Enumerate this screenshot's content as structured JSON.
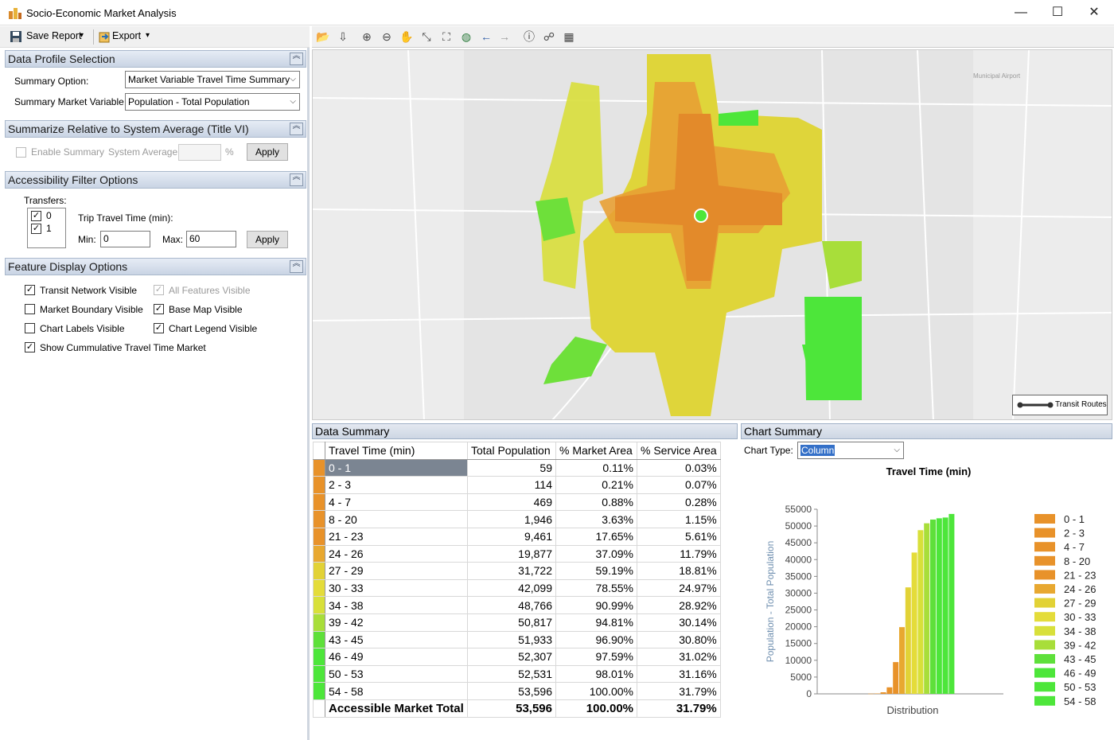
{
  "window": {
    "title": "Socio-Economic Market Analysis",
    "minimize": "—",
    "maximize": "☐",
    "close": "✕"
  },
  "toolbar": {
    "save_report": "Save Report",
    "export": "Export",
    "dropdown_glyph": "▾"
  },
  "sections": {
    "data_profile": "Data Profile Selection",
    "summarize": "Summarize Relative to System Average (Title VI)",
    "accessibility": "Accessibility Filter Options",
    "feature_display": "Feature Display Options"
  },
  "data_profile": {
    "summary_option_label": "Summary Option:",
    "summary_option_value": "Market Variable Travel Time Summary",
    "market_variable_label": "Summary Market Variable:",
    "market_variable_value": "Population - Total Population"
  },
  "summarize": {
    "enable_label": "Enable Summary",
    "system_average_label": "System Average:",
    "percent_symbol": "%",
    "apply_label": "Apply"
  },
  "accessibility": {
    "transfers_label": "Transfers:",
    "transfer_options": [
      "0",
      "1"
    ],
    "trip_time_label": "Trip Travel Time (min):",
    "min_label": "Min:",
    "min_value": "0",
    "max_label": "Max:",
    "max_value": "60",
    "apply_label": "Apply"
  },
  "feature_display": {
    "transit_network": "Transit Network Visible",
    "all_features": "All Features Visible",
    "market_boundary": "Market Boundary Visible",
    "base_map": "Base Map Visible",
    "chart_labels": "Chart Labels Visible",
    "chart_legend": "Chart Legend Visible",
    "cumulative": "Show Cummulative Travel Time Market"
  },
  "map": {
    "legend_label": "Transit Routes",
    "airport_label": "Municipal Airport"
  },
  "data_summary": {
    "title": "Data Summary",
    "columns": [
      "Travel Time (min)",
      "Total Population",
      "% Market Area",
      "% Service Area"
    ],
    "rows": [
      {
        "range": "0 - 1",
        "pop": "59",
        "market": "0.11%",
        "service": "0.03%",
        "color": "#e8922a"
      },
      {
        "range": "2 - 3",
        "pop": "114",
        "market": "0.21%",
        "service": "0.07%",
        "color": "#e8922a"
      },
      {
        "range": "4 - 7",
        "pop": "469",
        "market": "0.88%",
        "service": "0.28%",
        "color": "#e8922a"
      },
      {
        "range": "8 - 20",
        "pop": "1,946",
        "market": "3.63%",
        "service": "1.15%",
        "color": "#e8922a"
      },
      {
        "range": "21 - 23",
        "pop": "9,461",
        "market": "17.65%",
        "service": "5.61%",
        "color": "#e8922a"
      },
      {
        "range": "24 - 26",
        "pop": "19,877",
        "market": "37.09%",
        "service": "11.79%",
        "color": "#e8a830"
      },
      {
        "range": "27 - 29",
        "pop": "31,722",
        "market": "59.19%",
        "service": "18.81%",
        "color": "#e2d236"
      },
      {
        "range": "30 - 33",
        "pop": "42,099",
        "market": "78.55%",
        "service": "24.97%",
        "color": "#e4dc3a"
      },
      {
        "range": "34 - 38",
        "pop": "48,766",
        "market": "90.99%",
        "service": "28.92%",
        "color": "#d8e03a"
      },
      {
        "range": "39 - 42",
        "pop": "50,817",
        "market": "94.81%",
        "service": "30.14%",
        "color": "#a8de3a"
      },
      {
        "range": "43 - 45",
        "pop": "51,933",
        "market": "96.90%",
        "service": "30.80%",
        "color": "#5ee03a"
      },
      {
        "range": "46 - 49",
        "pop": "52,307",
        "market": "97.59%",
        "service": "31.02%",
        "color": "#4de63a"
      },
      {
        "range": "50 - 53",
        "pop": "52,531",
        "market": "98.01%",
        "service": "31.16%",
        "color": "#4de63a"
      },
      {
        "range": "54 - 58",
        "pop": "53,596",
        "market": "100.00%",
        "service": "31.79%",
        "color": "#4de63a"
      }
    ],
    "total": {
      "label": "Accessible Market Total",
      "pop": "53,596",
      "market": "100.00%",
      "service": "31.79%"
    }
  },
  "chart_summary": {
    "title": "Chart Summary",
    "chart_type_label": "Chart Type:",
    "chart_type_value": "Column"
  },
  "chart_data": {
    "type": "bar",
    "title": "Travel Time (min)",
    "xlabel": "Distribution",
    "ylabel": "Population - Total Population",
    "ylim": [
      0,
      55000
    ],
    "yticks": [
      "0",
      "5000",
      "10000",
      "15000",
      "20000",
      "25000",
      "30000",
      "35000",
      "40000",
      "45000",
      "50000",
      "55000"
    ],
    "legend_position": "right",
    "series": [
      {
        "name": "0 - 1",
        "value": 59,
        "color": "#e8922a"
      },
      {
        "name": "2 - 3",
        "value": 114,
        "color": "#e8922a"
      },
      {
        "name": "4 - 7",
        "value": 469,
        "color": "#e8922a"
      },
      {
        "name": "8 - 20",
        "value": 1946,
        "color": "#e8922a"
      },
      {
        "name": "21 - 23",
        "value": 9461,
        "color": "#e8922a"
      },
      {
        "name": "24 - 26",
        "value": 19877,
        "color": "#e8a830"
      },
      {
        "name": "27 - 29",
        "value": 31722,
        "color": "#e2d236"
      },
      {
        "name": "30 - 33",
        "value": 42099,
        "color": "#e4dc3a"
      },
      {
        "name": "34 - 38",
        "value": 48766,
        "color": "#d8e03a"
      },
      {
        "name": "39 - 42",
        "value": 50817,
        "color": "#a8de3a"
      },
      {
        "name": "43 - 45",
        "value": 51933,
        "color": "#5ee03a"
      },
      {
        "name": "46 - 49",
        "value": 52307,
        "color": "#4de63a"
      },
      {
        "name": "50 - 53",
        "value": 52531,
        "color": "#4de63a"
      },
      {
        "name": "54 - 58",
        "value": 53596,
        "color": "#4de63a"
      }
    ]
  }
}
